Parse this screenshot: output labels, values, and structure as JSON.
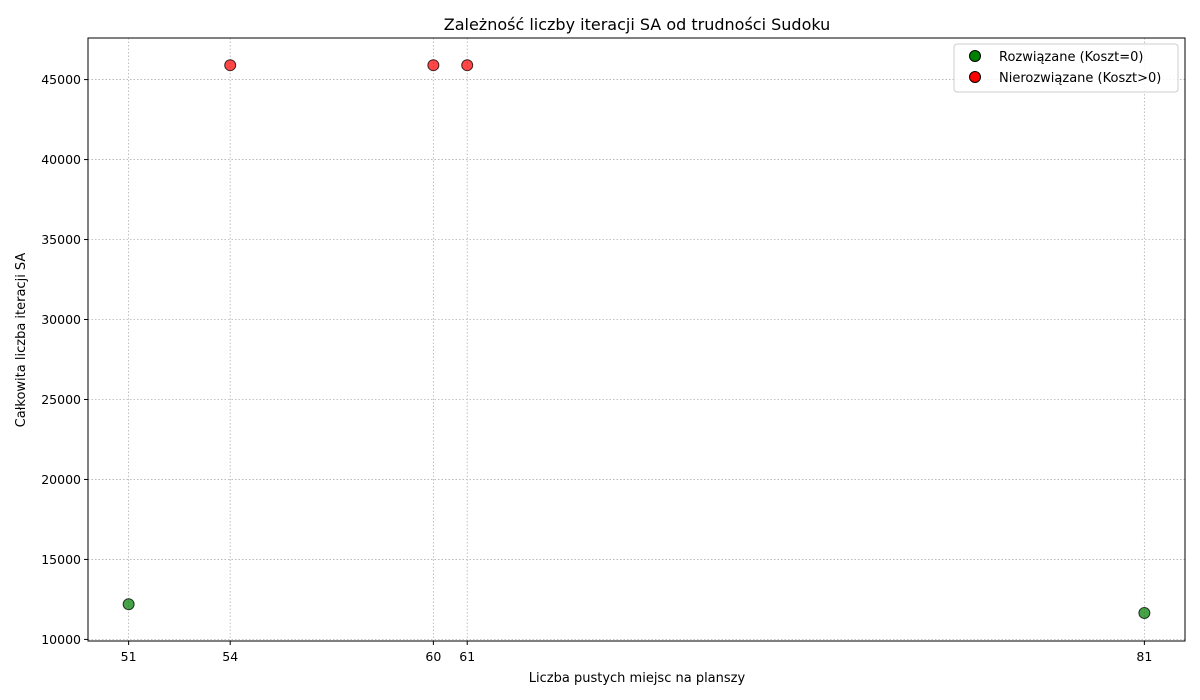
{
  "chart_data": {
    "type": "scatter",
    "title": "Zależność liczby iteracji SA od trudności Sudoku",
    "xlabel": "Liczba pustych miejsc na planszy",
    "ylabel": "Całkowita liczba iteracji SA",
    "xlim": [
      49.8,
      82.2
    ],
    "ylim": [
      9900,
      47600
    ],
    "xticks": [
      51,
      54,
      60,
      61,
      81
    ],
    "yticks": [
      10000,
      15000,
      20000,
      25000,
      30000,
      35000,
      40000,
      45000
    ],
    "grid": true,
    "legend_position": "top-right",
    "series": [
      {
        "name": "Rozwiązane (Koszt=0)",
        "color": "#008000",
        "points": [
          {
            "x": 51,
            "y": 12200
          },
          {
            "x": 81,
            "y": 11650
          }
        ]
      },
      {
        "name": "Nierozwiązane (Koszt>0)",
        "color": "#ff0000",
        "points": [
          {
            "x": 54,
            "y": 45900
          },
          {
            "x": 60,
            "y": 45900
          },
          {
            "x": 61,
            "y": 45900
          }
        ]
      }
    ]
  }
}
